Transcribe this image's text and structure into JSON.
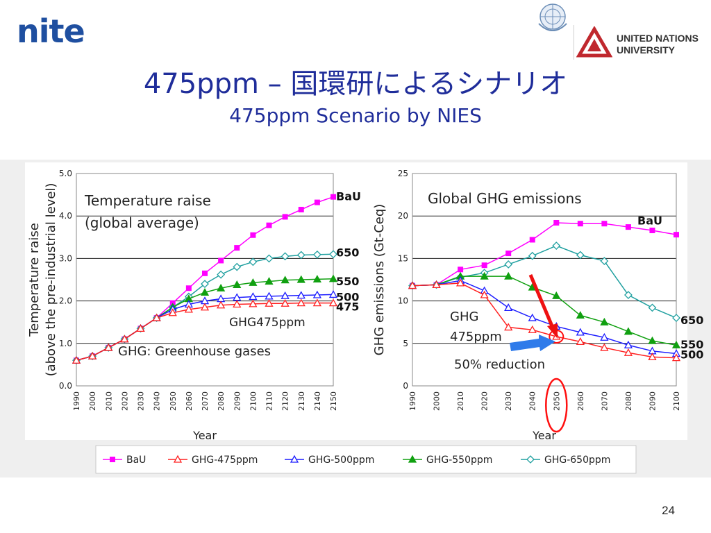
{
  "header": {
    "logo_text": "nite",
    "unu_line1": "UNITED NATIONS",
    "unu_line2": "UNIVERSITY"
  },
  "slide": {
    "title": "475ppm – 国環研によるシナリオ",
    "subtitle": "475ppm Scenario by NIES",
    "page_number": "24"
  },
  "colors": {
    "BaU": "#ff00ff",
    "GHG-475ppm": "#ff2020",
    "GHG-500ppm": "#1c1cff",
    "GHG-550ppm": "#10a010",
    "GHG-650ppm": "#20a0a0"
  },
  "chart_data": [
    {
      "type": "line",
      "title": "Temperature raise\n(global average)",
      "xlabel": "Year",
      "ylabel": "Temperature raise\n(above the pre-industrial level)",
      "x": [
        1990,
        2000,
        2010,
        2020,
        2030,
        2040,
        2050,
        2060,
        2070,
        2080,
        2090,
        2100,
        2110,
        2120,
        2130,
        2140,
        2150
      ],
      "ylim": [
        0,
        5
      ],
      "yticks": [
        "0.0",
        "1.0",
        "2.0",
        "3.0",
        "4.0",
        "5.0"
      ],
      "grid": true,
      "series": [
        {
          "name": "BaU",
          "marker": "square",
          "values": [
            0.6,
            0.7,
            0.9,
            1.1,
            1.35,
            1.6,
            1.95,
            2.3,
            2.65,
            2.95,
            3.25,
            3.55,
            3.78,
            3.98,
            4.15,
            4.32,
            4.45
          ]
        },
        {
          "name": "GHG-650ppm",
          "marker": "diamond",
          "values": [
            0.6,
            0.7,
            0.9,
            1.1,
            1.35,
            1.6,
            1.85,
            2.1,
            2.4,
            2.62,
            2.8,
            2.92,
            3.0,
            3.05,
            3.08,
            3.09,
            3.1
          ]
        },
        {
          "name": "GHG-550ppm",
          "marker": "triangle-filled",
          "values": [
            0.6,
            0.7,
            0.9,
            1.1,
            1.35,
            1.6,
            1.85,
            2.05,
            2.2,
            2.3,
            2.38,
            2.43,
            2.46,
            2.49,
            2.5,
            2.51,
            2.52
          ]
        },
        {
          "name": "GHG-500ppm",
          "marker": "triangle-open",
          "values": [
            0.6,
            0.7,
            0.9,
            1.1,
            1.35,
            1.6,
            1.8,
            1.92,
            2.0,
            2.05,
            2.08,
            2.1,
            2.11,
            2.12,
            2.13,
            2.14,
            2.15
          ]
        },
        {
          "name": "GHG-475ppm",
          "marker": "triangle-open",
          "values": [
            0.6,
            0.7,
            0.9,
            1.1,
            1.35,
            1.6,
            1.72,
            1.8,
            1.85,
            1.9,
            1.92,
            1.93,
            1.94,
            1.94,
            1.95,
            1.95,
            1.95
          ]
        }
      ],
      "end_labels": [
        "BaU",
        "650",
        "550",
        "500",
        "475"
      ],
      "annotations": [
        "GHG475ppm",
        "GHG: Greenhouse gases"
      ]
    },
    {
      "type": "line",
      "title": "Global GHG emissions",
      "xlabel": "Year",
      "ylabel": "GHG emissions (Gt-Ceq)",
      "x": [
        1990,
        2000,
        2010,
        2020,
        2030,
        2040,
        2050,
        2060,
        2070,
        2080,
        2090,
        2100
      ],
      "ylim": [
        0,
        25
      ],
      "yticks": [
        "0",
        "5",
        "10",
        "15",
        "20",
        "25"
      ],
      "grid": true,
      "series": [
        {
          "name": "BaU",
          "marker": "square",
          "values": [
            11.8,
            11.9,
            13.7,
            14.2,
            15.6,
            17.2,
            19.2,
            19.1,
            19.1,
            18.7,
            18.3,
            17.8
          ]
        },
        {
          "name": "GHG-650ppm",
          "marker": "diamond",
          "values": [
            11.8,
            11.9,
            12.8,
            13.3,
            14.3,
            15.3,
            16.5,
            15.4,
            14.7,
            10.7,
            9.2,
            8.0
          ]
        },
        {
          "name": "GHG-550ppm",
          "marker": "triangle-filled",
          "values": [
            11.8,
            11.9,
            12.9,
            12.9,
            12.9,
            11.6,
            10.6,
            8.3,
            7.5,
            6.4,
            5.3,
            4.8
          ]
        },
        {
          "name": "GHG-500ppm",
          "marker": "triangle-open",
          "values": [
            11.8,
            11.9,
            12.4,
            11.2,
            9.2,
            8.0,
            7.0,
            6.3,
            5.7,
            4.8,
            4.1,
            3.8
          ]
        },
        {
          "name": "GHG-475ppm",
          "marker": "triangle-open",
          "values": [
            11.8,
            11.9,
            12.1,
            10.7,
            6.9,
            6.6,
            5.8,
            5.2,
            4.5,
            3.9,
            3.4,
            3.3
          ]
        }
      ],
      "end_labels": [
        "BaU",
        "650",
        "550",
        "500"
      ],
      "annotations": [
        "GHG\n475ppm",
        "50% reduction"
      ],
      "highlight_year": 2050
    }
  ],
  "legend": [
    "BaU",
    "GHG-475ppm",
    "GHG-500ppm",
    "GHG-550ppm",
    "GHG-650ppm"
  ]
}
